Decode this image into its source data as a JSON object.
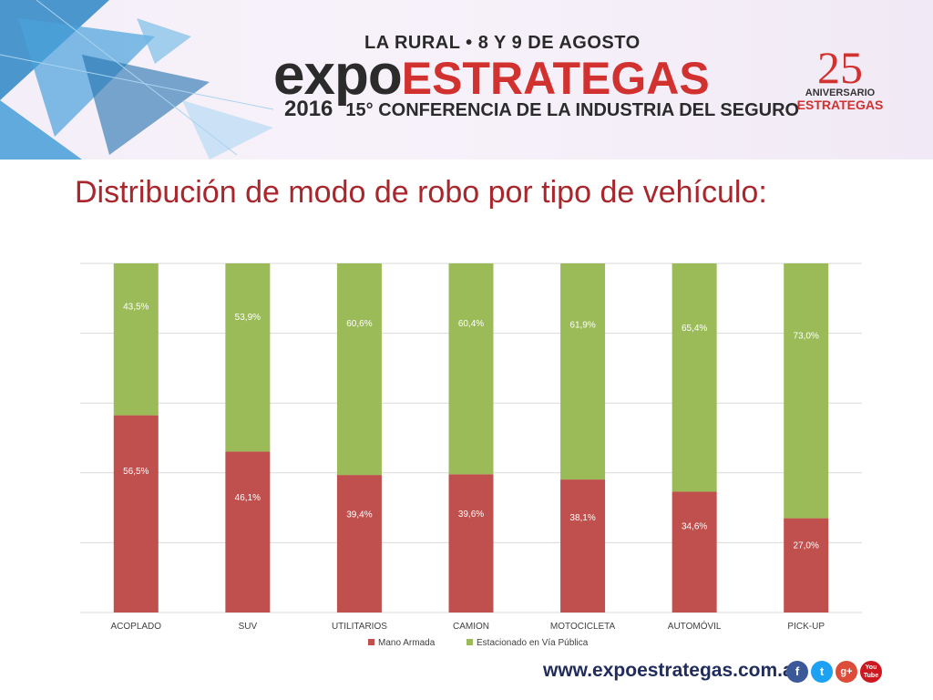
{
  "header": {
    "event_subtitle": "LA RURAL • 8 Y 9 DE AGOSTO",
    "logo_expo": "expo",
    "logo_estrategas": "ESTRATEGAS",
    "year": "2016",
    "conference": "15° CONFERENCIA DE LA INDUSTRIA DEL SEGURO",
    "anniversary_number": "25",
    "anniversary_label": "ANIVERSARIO",
    "anniversary_brand": "ESTRATEGAS"
  },
  "slide_title": "Distribución de modo de robo por tipo de vehículo:",
  "chart_data": {
    "type": "bar",
    "stacked": true,
    "percent": true,
    "categories": [
      "ACOPLADO",
      "SUV",
      "UTILITARIOS",
      "CAMION",
      "MOTOCICLETA",
      "AUTOMÓVIL",
      "PICK-UP"
    ],
    "series": [
      {
        "name": "Mano Armada",
        "color": "#c0504d",
        "values": [
          56.5,
          46.1,
          39.4,
          39.6,
          38.1,
          34.6,
          27.0
        ],
        "labels": [
          "56,5%",
          "46,1%",
          "39,4%",
          "39,6%",
          "38,1%",
          "34,6%",
          "27,0%"
        ]
      },
      {
        "name": "Estacionado en Vía Pública",
        "color": "#9bbb59",
        "values": [
          43.5,
          53.9,
          60.6,
          60.4,
          61.9,
          65.4,
          73.0
        ],
        "labels": [
          "43,5%",
          "53,9%",
          "60,6%",
          "60,4%",
          "61,9%",
          "65,4%",
          "73,0%"
        ]
      }
    ],
    "ylim": [
      0,
      100
    ],
    "grid": true,
    "legend": "bottom"
  },
  "footer": {
    "url": "www.expoestrategas.com.ar",
    "social_icons": [
      "facebook-icon",
      "twitter-icon",
      "google-plus-icon",
      "youtube-icon"
    ],
    "social_glyphs": [
      "f",
      "t",
      "g+",
      "You Tube"
    ]
  }
}
